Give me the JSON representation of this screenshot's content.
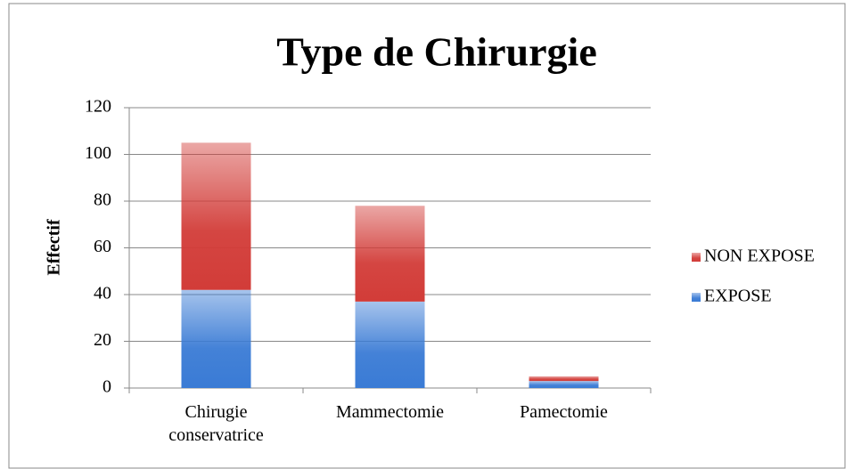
{
  "chart_data": {
    "type": "stacked_bar",
    "title": "Type de Chirurgie",
    "y_label": "Effectif",
    "categories": [
      "Chirugie conservatrice",
      "Mammectomie",
      "Pamectomie"
    ],
    "series": [
      {
        "name": "EXPOSE",
        "color": "#3a7bd5",
        "values": [
          42,
          37,
          3
        ]
      },
      {
        "name": "NON EXPOSE",
        "color": "#d23c38",
        "values": [
          63,
          41,
          2
        ]
      }
    ],
    "ylim": [
      0,
      120
    ],
    "yticks": [
      0,
      20,
      40,
      60,
      80,
      100,
      120
    ],
    "grid": true,
    "legend": "right"
  }
}
